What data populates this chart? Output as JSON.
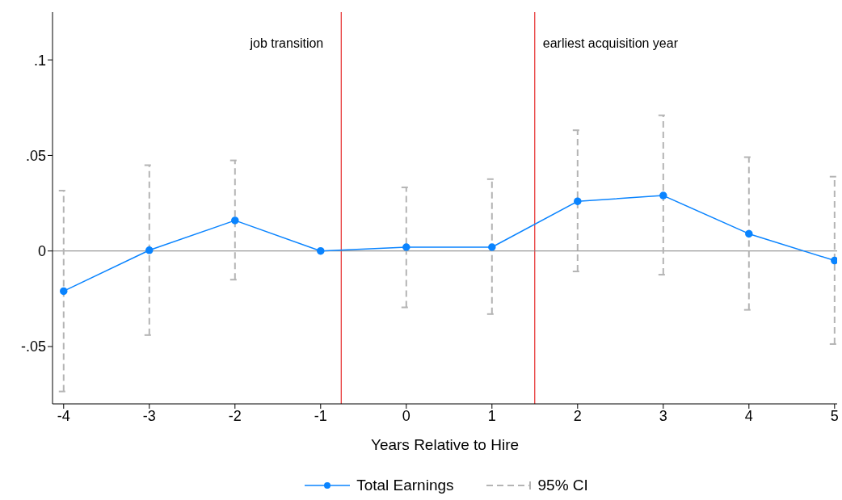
{
  "chart_data": {
    "type": "line",
    "xlabel": "Years Relative to Hire",
    "x": [
      -4,
      -3,
      -2,
      -1,
      0,
      1,
      2,
      3,
      4,
      5
    ],
    "series": [
      {
        "name": "Total Earnings",
        "color": "#0a84ff",
        "values": [
          -0.021,
          0.0004,
          0.016,
          0,
          0.002,
          0.002,
          0.026,
          0.029,
          0.009,
          -0.005
        ],
        "errors": [
          [
            -0.0735,
            0.0316
          ],
          [
            -0.044,
            0.0449
          ],
          [
            -0.015,
            0.0474
          ],
          null,
          [
            -0.0295,
            0.0333
          ],
          [
            -0.033,
            0.0376
          ],
          [
            -0.0107,
            0.0632
          ],
          [
            -0.0124,
            0.071
          ],
          [
            -0.0308,
            0.0491
          ],
          [
            -0.0487,
            0.0389
          ]
        ]
      }
    ],
    "annotations": [
      "95% CI"
    ],
    "ref_lines": [
      {
        "axis": "x",
        "value": -0.76,
        "label": "job transition",
        "color": "#e00000"
      },
      {
        "axis": "x",
        "value": 1.5,
        "label": "earliest acquisition year",
        "color": "#e00000"
      },
      {
        "axis": "y",
        "value": 0,
        "color": "#808080"
      }
    ],
    "xlim": [
      -4.13,
      5.03
    ],
    "xticks": [
      -4,
      -3,
      -2,
      -1,
      0,
      1,
      2,
      3,
      4,
      5
    ],
    "ylim": [
      -0.08,
      0.125
    ],
    "yticks": [
      {
        "value": -0.05,
        "label": "-.05"
      },
      0,
      {
        "value": 0.05,
        "label": ".05"
      },
      {
        "value": 0.1,
        "label": ".1"
      }
    ],
    "grid": false,
    "legend": "bottom",
    "marker": "circle",
    "line_style": "solid"
  }
}
